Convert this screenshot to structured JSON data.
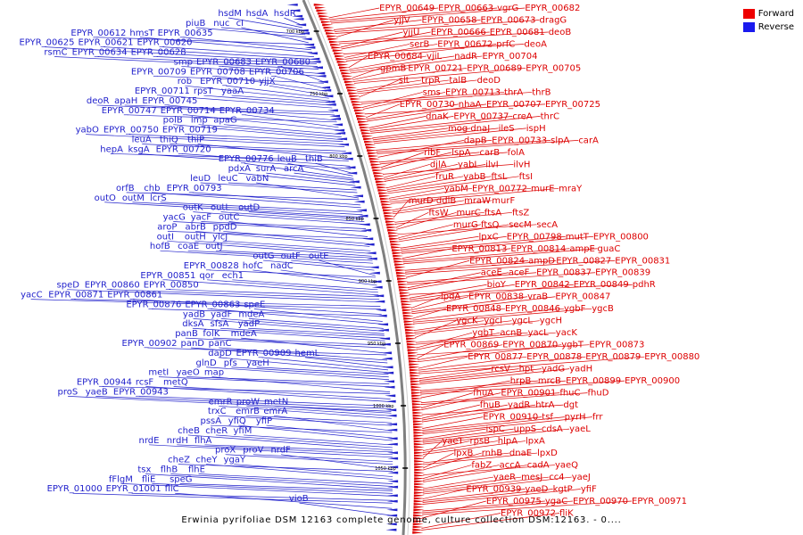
{
  "caption": "Erwinia pyrifoliae DSM 12163 complete genome, culture collection DSM:12163. - 0....",
  "legend": {
    "forward": {
      "label": "Forward",
      "color": "#ee0000"
    },
    "reverse": {
      "label": "Reverse",
      "color": "#1a1aee"
    }
  },
  "colors": {
    "forward": "#dd0000",
    "reverse": "#2222cc",
    "backbone": "#808080"
  },
  "scale_ticks": [
    {
      "kbp": 700,
      "label": "700 kbp"
    },
    {
      "kbp": 750,
      "label": "750 kbp"
    },
    {
      "kbp": 800,
      "label": "800 kbp"
    },
    {
      "kbp": 850,
      "label": "850 kbp"
    },
    {
      "kbp": 900,
      "label": "900 kbp"
    },
    {
      "kbp": 950,
      "label": "950 kbp"
    },
    {
      "kbp": 1000,
      "label": "1000 kbp"
    },
    {
      "kbp": 1050,
      "label": "1050 kbp"
    }
  ],
  "reverse_labels": [
    "hsdR",
    "hsdA",
    "hsdM",
    "cI",
    "nuc",
    "piuB",
    "EPYR_00635",
    "hmsT",
    "EPYR_00612",
    "EPYR_00620",
    "EPYR_00621",
    "EPYR_00625",
    "EPYR_00628",
    "EPYR_00634",
    "rsmC",
    "EPYR_00680",
    "EPYR_00683",
    "smp",
    "EPYR_00706",
    "EPYR_00708",
    "EPYR_00709",
    "yjjX",
    "EPYR_00710",
    "rob",
    "yaaA",
    "rpsT",
    "EPYR_00711",
    "EPYR_00745",
    "apaH",
    "deoR",
    "EPYR_00734",
    "EPYR_00714",
    "EPYR_00747",
    "apaG",
    "imp",
    "polB",
    "EPYR_00719",
    "EPYR_00750",
    "yabO",
    "thiP",
    "thiQ",
    "leuA",
    "EPYR_00720",
    "ksgA",
    "hepA",
    "thiB",
    "leuB",
    "EPYR_00776",
    "arcA",
    "surA",
    "pdxA",
    "vabN",
    "leuC",
    "leuD",
    "EPYR_00793",
    "chb",
    "orfB",
    "lcrS",
    "outM",
    "outO",
    "outD",
    "outL",
    "outK",
    "outC",
    "yacF",
    "yacG",
    "ppdD",
    "abrB",
    "aroP",
    "ylcJ",
    "outH",
    "outI",
    "outJ",
    "coaE",
    "hofB",
    "outE",
    "outF",
    "outG",
    "nadC",
    "hofC",
    "EPYR_00828",
    "ech1",
    "qor",
    "EPYR_00851",
    "EPYR_00850",
    "EPYR_00860",
    "speD",
    "EPYR_00861",
    "EPYR_00871",
    "yacC",
    "speE",
    "EPYR_00863",
    "EPYR_00876",
    "mdeA",
    "yadF",
    "yadB",
    "yadP",
    "sfsA",
    "dksA",
    "mdeA",
    "folK",
    "panB",
    "panC",
    "panD",
    "EPYR_00902",
    "hemL",
    "EPYR_00909",
    "dapD",
    "yaeH",
    "pfs",
    "glnD",
    "map",
    "yaeO",
    "metI",
    "metQ",
    "rcsF",
    "EPYR_00944",
    "EPYR_00943",
    "yaeB",
    "proS",
    "metN",
    "proW",
    "emrR",
    "emrA",
    "emrB",
    "trxC",
    "yfiP",
    "yfiQ",
    "pssA",
    "yfiM",
    "cheR",
    "cheB",
    "flhA",
    "nrdH",
    "nrdE",
    "nrdF",
    "proV",
    "proX",
    "ygaY",
    "cheY",
    "cheZ",
    "flhE",
    "flhB",
    "tsx",
    "speG",
    "fliE",
    "fFlgM",
    "fliC",
    "EPYR_01001",
    "EPYR_01000",
    "vioB"
  ],
  "forward_labels": [
    "EPYR_00649",
    "EPYR_00663",
    "vgrG",
    "EPYR_00682",
    "yjjV",
    "EPYR_00658",
    "EPYR_00673",
    "dragG",
    "yjjU",
    "EPYR_00666",
    "EPYR_00681",
    "deoB",
    "serB",
    "EPYR_00672",
    "prfC",
    "deoA",
    "EPYR_00684",
    "vjiL",
    "nadR",
    "EPYR_00704",
    "gpmB",
    "EPYR_00721",
    "EPYR_00689",
    "EPYR_00705",
    "slt",
    "trpR",
    "talB",
    "deoD",
    "sms",
    "EPYR_00713",
    "thrA",
    "thrB",
    "EPYR_00730",
    "nhaA",
    "EPYR_00707",
    "EPYR_00725",
    "dnaK",
    "EPYR_00737",
    "creA",
    "thrC",
    "mog",
    "dnaJ",
    "ileS",
    "ispH",
    "dapB",
    "EPYR_00733",
    "slpA",
    "carA",
    "ribF",
    "lspA",
    "carB",
    "folA",
    "djlA",
    "yabI",
    "ilvI",
    "ilvH",
    "fruR",
    "yabB",
    "ftsL",
    "ftsI",
    "yabM",
    "EPYR_00772",
    "murE",
    "mraY",
    "murD",
    "ddlB",
    "mraW",
    "murF",
    "ftsW",
    "murC",
    "ftsA",
    "ftsZ",
    "murG",
    "ftsQ",
    "secM",
    "secA",
    "lpxC",
    "EPYR_00798",
    "mutT",
    "EPYR_00800",
    "EPYR_00813",
    "EPYR_00814",
    "ampE",
    "guaC",
    "EPYR_00824",
    "ampD",
    "EPYR_00827",
    "EPYR_00831",
    "aceE",
    "aceF",
    "EPYR_00837",
    "EPYR_00839",
    "bioY",
    "EPYR_00842",
    "EPYR_00849",
    "pdhR",
    "lpdA",
    "EPYR_00838",
    "vraB",
    "EPYR_00847",
    "EPYR_00848",
    "EPYR_00846",
    "ygbF",
    "ygcB",
    "ygcK",
    "ygcI",
    "ygcL",
    "ygcH",
    "ygbT",
    "acnB",
    "yacL",
    "yacK",
    "EPYR_00869",
    "EPYR_00870",
    "ygbT",
    "EPYR_00873",
    "EPYR_00877",
    "EPYR_00878",
    "EPYR_00879",
    "EPYR_00880",
    "rcsV",
    "hpt",
    "yadG",
    "yadH",
    "hrpB",
    "mrcB",
    "EPYR_00899",
    "EPYR_00900",
    "fhuA",
    "EPYR_00901",
    "fhuC",
    "fhuD",
    "fhuB",
    "yadR",
    "htrA",
    "dgt",
    "EPYR_00910",
    "tsf",
    "pyrH",
    "frr",
    "ispC",
    "uppS",
    "cdsA",
    "yaeL",
    "yaeT",
    "rpsB",
    "hlpA",
    "lpxA",
    "lpxB",
    "rnhB",
    "dnaE",
    "lpxD",
    "fabZ",
    "accA",
    "cadA",
    "yaeQ",
    "yaeR",
    "mesJ",
    "cc4",
    "yaeJ",
    "EPYR_00939",
    "yaeD",
    "kgtP",
    "yfiF",
    "EPYR_00975",
    "ygaC",
    "EPYR_00970",
    "EPYR_00971",
    "EPYR_00972",
    "fliK"
  ]
}
